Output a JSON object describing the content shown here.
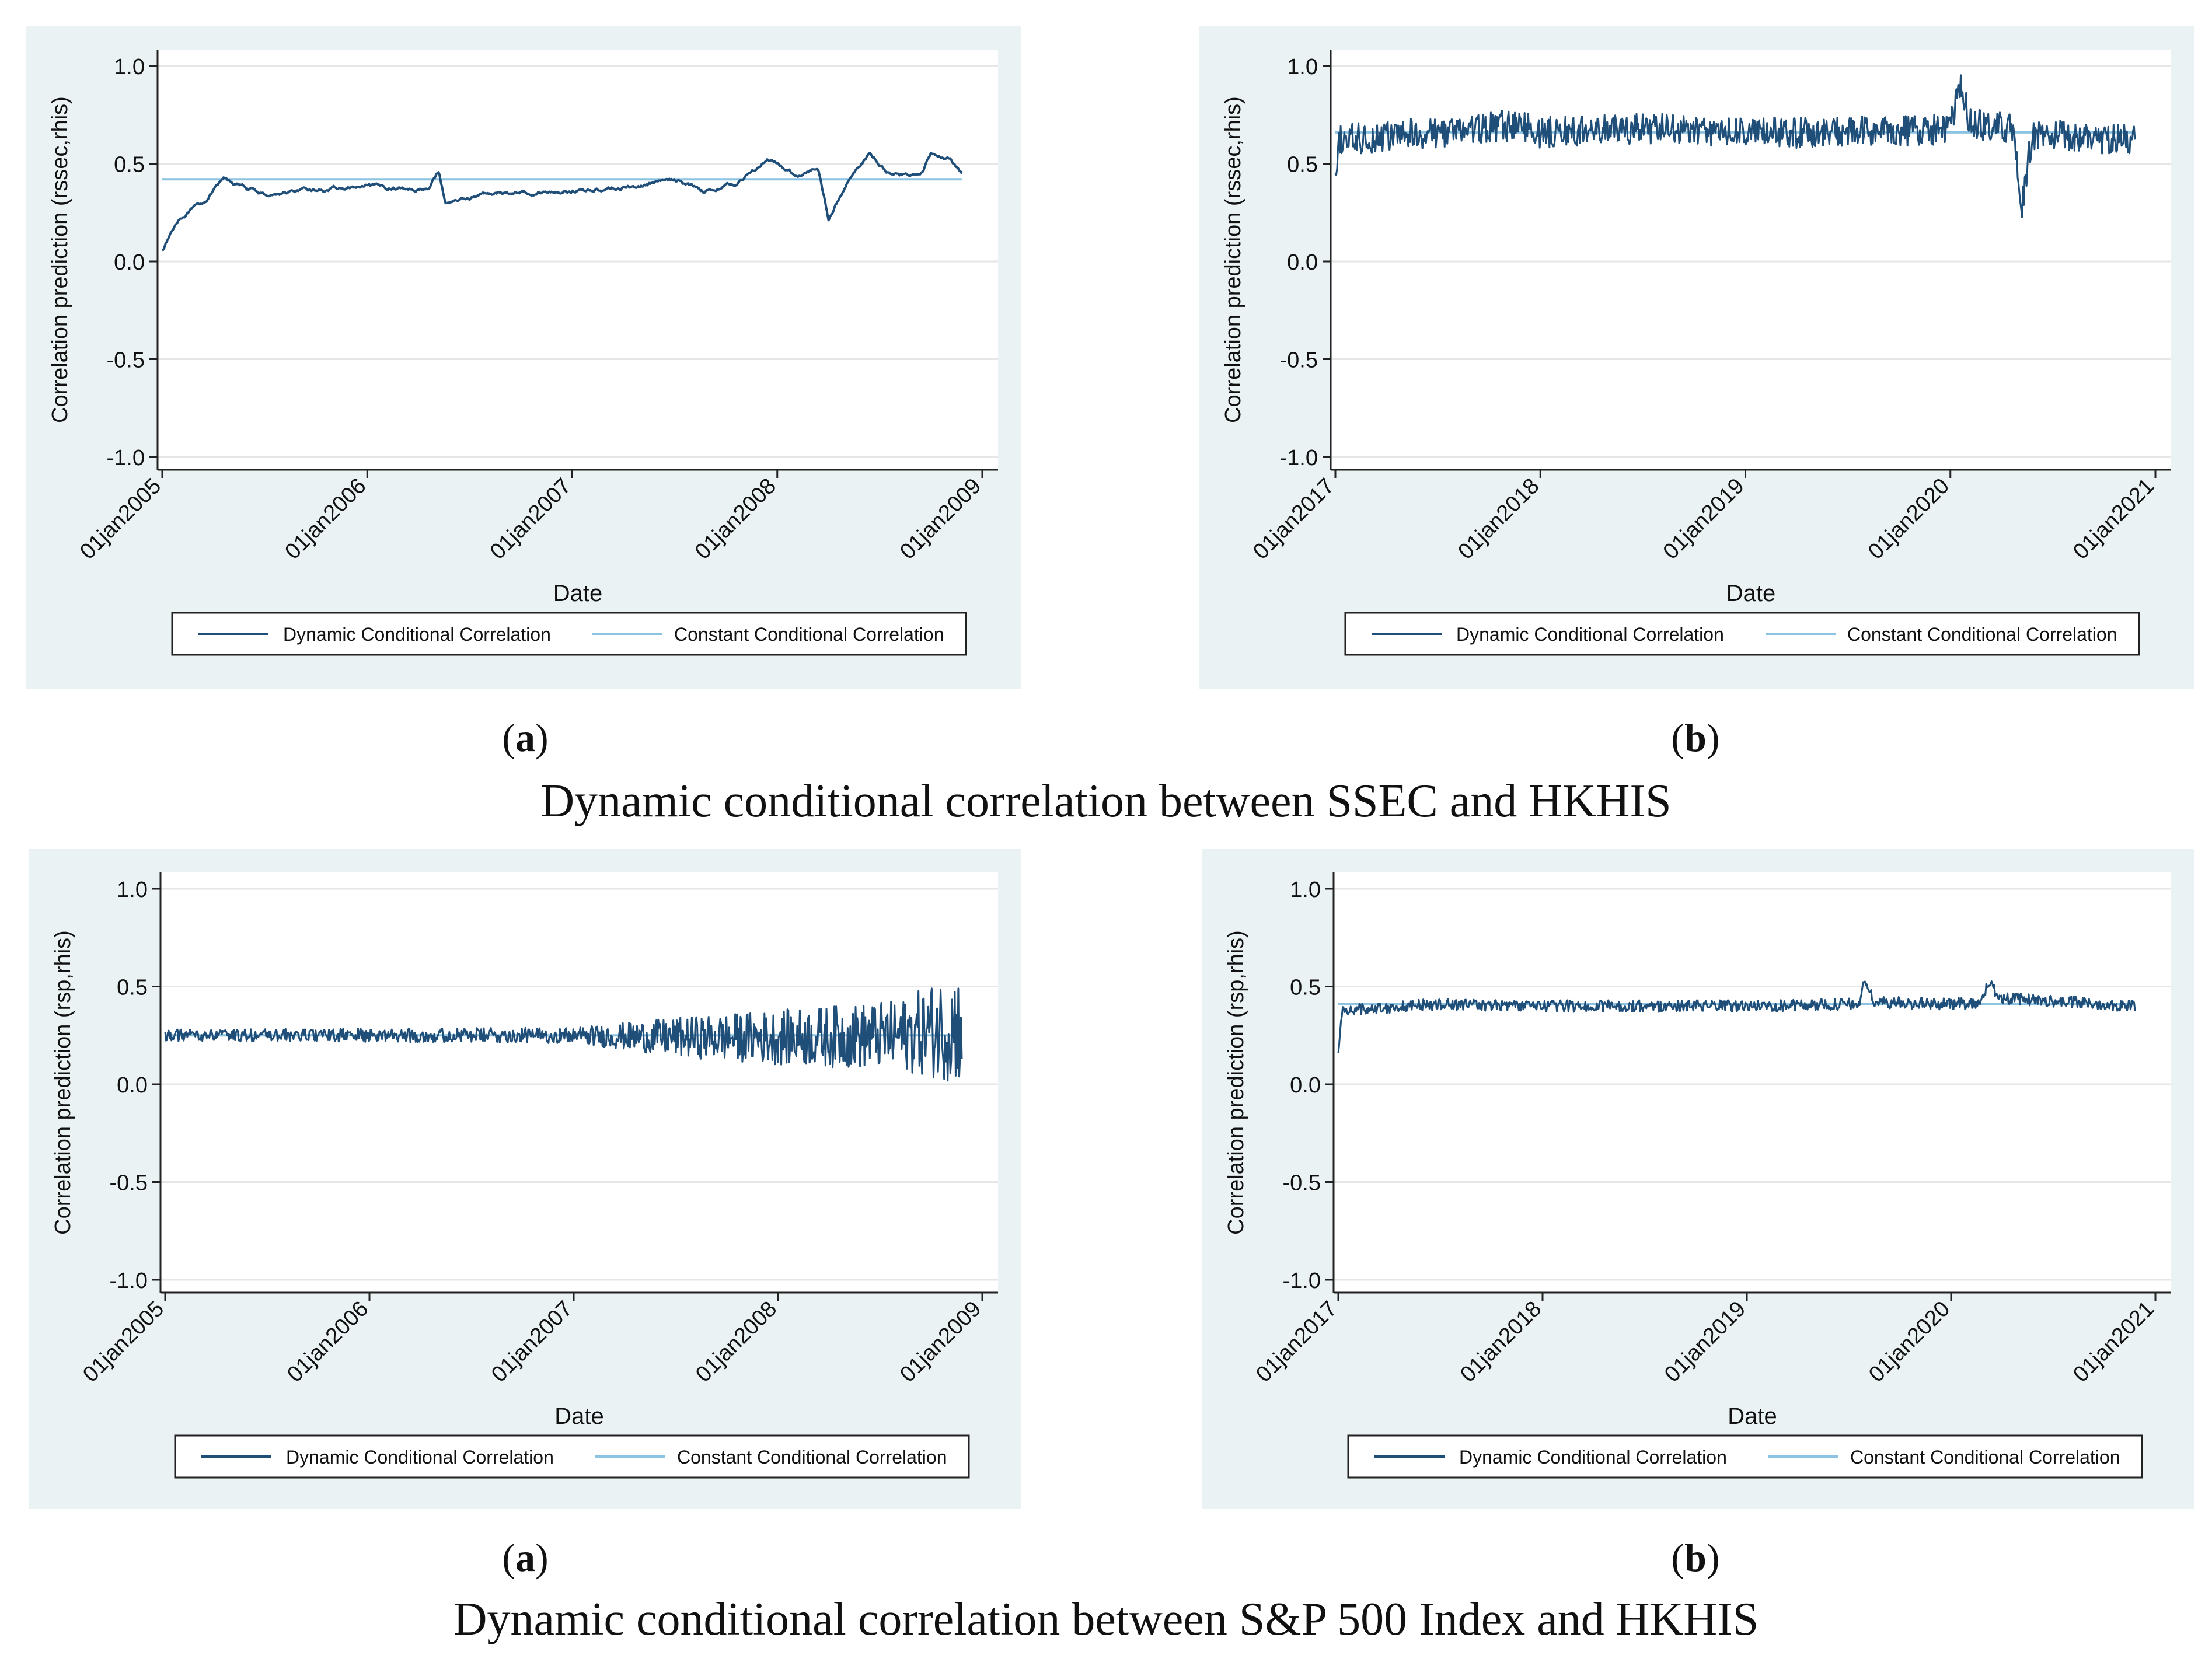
{
  "figures": [
    {
      "caption": "Dynamic conditional correlation between SSEC and HKHIS",
      "label_a": "a",
      "label_b": "b"
    },
    {
      "caption": "Dynamic conditional correlation between S&P 500 Index and HKHIS",
      "label_a": "a",
      "label_b": "b"
    }
  ],
  "colors": {
    "dynamic": "#1f4e79",
    "constant": "#8cc3e3",
    "panel_bg": "#eaf2f3"
  },
  "chart_data": [
    {
      "type": "line",
      "panel": "figure1-a",
      "ylabel": "Correlation prediction (rssec,rhis)",
      "xlabel": "Date",
      "x_ticks": [
        "01jan2005",
        "01jan2006",
        "01jan2007",
        "01jan2008",
        "01jan2009"
      ],
      "y_ticks": [
        "1.0",
        "0.5",
        "0.0",
        "-0.5",
        "-1.0"
      ],
      "ylim": [
        -1,
        1
      ],
      "xlim": [
        2005.0,
        2009.0
      ],
      "legend": [
        "Dynamic Conditional Correlation",
        "Constant Conditional Correlation"
      ],
      "constant": 0.42,
      "anchors": [
        [
          2005.0,
          0.06
        ],
        [
          2005.08,
          0.22
        ],
        [
          2005.2,
          0.3
        ],
        [
          2005.3,
          0.42
        ],
        [
          2005.5,
          0.34
        ],
        [
          2005.7,
          0.36
        ],
        [
          2006.0,
          0.38
        ],
        [
          2006.3,
          0.37
        ],
        [
          2006.35,
          0.46
        ],
        [
          2006.38,
          0.3
        ],
        [
          2006.6,
          0.35
        ],
        [
          2007.0,
          0.36
        ],
        [
          2007.3,
          0.38
        ],
        [
          2007.5,
          0.42
        ],
        [
          2007.65,
          0.36
        ],
        [
          2007.8,
          0.4
        ],
        [
          2007.95,
          0.52
        ],
        [
          2008.1,
          0.44
        ],
        [
          2008.2,
          0.48
        ],
        [
          2008.25,
          0.22
        ],
        [
          2008.35,
          0.42
        ],
        [
          2008.45,
          0.55
        ],
        [
          2008.55,
          0.45
        ],
        [
          2008.7,
          0.44
        ],
        [
          2008.75,
          0.55
        ],
        [
          2008.85,
          0.52
        ],
        [
          2008.9,
          0.45
        ]
      ],
      "noise": 0.015
    },
    {
      "type": "line",
      "panel": "figure1-b",
      "ylabel": "Correlation prediction (rssec,rhis)",
      "xlabel": "Date",
      "x_ticks": [
        "01jan2017",
        "01jan2018",
        "01jan2019",
        "01jan2020",
        "01jan2021"
      ],
      "y_ticks": [
        "1.0",
        "0.5",
        "0.0",
        "-0.5",
        "-1.0"
      ],
      "ylim": [
        -1,
        1
      ],
      "xlim": [
        2017.0,
        2021.0
      ],
      "legend": [
        "Dynamic Conditional Correlation",
        "Constant Conditional Correlation"
      ],
      "constant": 0.66,
      "anchors": [
        [
          2017.0,
          0.38
        ],
        [
          2017.02,
          0.62
        ],
        [
          2017.5,
          0.66
        ],
        [
          2017.9,
          0.7
        ],
        [
          2018.0,
          0.66
        ],
        [
          2018.5,
          0.68
        ],
        [
          2019.0,
          0.66
        ],
        [
          2019.5,
          0.66
        ],
        [
          2020.0,
          0.68
        ],
        [
          2020.05,
          0.9
        ],
        [
          2020.1,
          0.7
        ],
        [
          2020.3,
          0.68
        ],
        [
          2020.35,
          0.28
        ],
        [
          2020.4,
          0.65
        ],
        [
          2020.9,
          0.62
        ]
      ],
      "noise": 0.08
    },
    {
      "type": "line",
      "panel": "figure2-a",
      "ylabel": "Correlation prediction (rsp,rhis)",
      "xlabel": "Date",
      "x_ticks": [
        "01jan2005",
        "01jan2006",
        "01jan2007",
        "01jan2008",
        "01jan2009"
      ],
      "y_ticks": [
        "1.0",
        "0.5",
        "0.0",
        "-0.5",
        "-1.0"
      ],
      "ylim": [
        -1,
        1
      ],
      "xlim": [
        2005.0,
        2009.0
      ],
      "legend": [
        "Dynamic Conditional Correlation",
        "Constant Conditional Correlation"
      ],
      "constant": 0.25,
      "anchors": [
        [
          2005.0,
          0.25
        ],
        [
          2006.0,
          0.25
        ],
        [
          2007.0,
          0.25
        ],
        [
          2007.5,
          0.24
        ],
        [
          2008.0,
          0.24
        ],
        [
          2008.6,
          0.25
        ],
        [
          2008.9,
          0.3
        ]
      ],
      "noise_ramp": [
        [
          2005.0,
          0.03
        ],
        [
          2007.0,
          0.04
        ],
        [
          2007.5,
          0.1
        ],
        [
          2008.0,
          0.14
        ],
        [
          2008.6,
          0.18
        ],
        [
          2008.9,
          0.3
        ]
      ]
    },
    {
      "type": "line",
      "panel": "figure2-b",
      "ylabel": "Correlation prediction (rsp,rhis)",
      "xlabel": "Date",
      "x_ticks": [
        "01jan2017",
        "01jan2018",
        "01jan2019",
        "01jan2020",
        "01jan2021"
      ],
      "y_ticks": [
        "1.0",
        "0.5",
        "0.0",
        "-0.5",
        "-1.0"
      ],
      "ylim": [
        -1,
        1
      ],
      "xlim": [
        2017.0,
        2021.0
      ],
      "legend": [
        "Dynamic Conditional Correlation",
        "Constant Conditional Correlation"
      ],
      "constant": 0.41,
      "anchors": [
        [
          2017.0,
          0.15
        ],
        [
          2017.02,
          0.38
        ],
        [
          2017.5,
          0.41
        ],
        [
          2018.0,
          0.4
        ],
        [
          2019.0,
          0.4
        ],
        [
          2019.55,
          0.41
        ],
        [
          2019.58,
          0.54
        ],
        [
          2019.62,
          0.42
        ],
        [
          2020.0,
          0.41
        ],
        [
          2020.15,
          0.42
        ],
        [
          2020.18,
          0.52
        ],
        [
          2020.25,
          0.44
        ],
        [
          2020.9,
          0.4
        ]
      ],
      "noise": 0.03
    }
  ]
}
